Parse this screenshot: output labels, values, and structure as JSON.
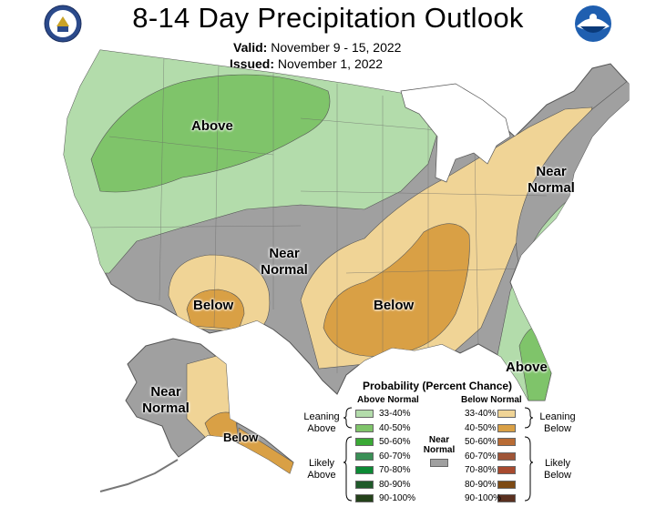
{
  "header": {
    "title": "8-14 Day Precipitation Outlook",
    "valid_label": "Valid:",
    "valid_value": "November 9 - 15, 2022",
    "issued_label": "Issued:",
    "issued_value": "November 1, 2022"
  },
  "map_labels": {
    "above_north": "Above",
    "near_normal_center_1": "Near",
    "near_normal_center_2": "Normal",
    "below_southwest": "Below",
    "below_south": "Below",
    "near_normal_northeast_1": "Near",
    "near_normal_northeast_2": "Normal",
    "above_florida": "Above",
    "near_normal_alaska_1": "Near",
    "near_normal_alaska_2": "Normal",
    "below_alaska": "Below"
  },
  "legend": {
    "title": "Probability (Percent Chance)",
    "above_header": "Above Normal",
    "below_header": "Below Normal",
    "leaning_above_1": "Leaning",
    "leaning_above_2": "Above",
    "likely_above_1": "Likely",
    "likely_above_2": "Above",
    "leaning_below_1": "Leaning",
    "leaning_below_2": "Below",
    "likely_below_1": "Likely",
    "likely_below_2": "Below",
    "near_normal_1": "Near",
    "near_normal_2": "Normal",
    "above_ranges": [
      "33-40%",
      "40-50%",
      "50-60%",
      "60-70%",
      "70-80%",
      "80-90%",
      "90-100%"
    ],
    "below_ranges": [
      "33-40%",
      "40-50%",
      "50-60%",
      "60-70%",
      "70-80%",
      "80-90%",
      "90-100%"
    ],
    "above_colors": [
      "#b3dcab",
      "#7fc46a",
      "#3aa935",
      "#3a8f56",
      "#0c8a35",
      "#1f5a2a",
      "#24421a"
    ],
    "below_colors": [
      "#f0d496",
      "#d9a045",
      "#b86b34",
      "#9f5537",
      "#a84a2f",
      "#7d4a14",
      "#5a3020"
    ],
    "near_normal_color": "#a0a0a0"
  },
  "colors": {
    "above_33_40": "#b3dcab",
    "above_40_50": "#7fc46a",
    "below_33_40": "#f0d496",
    "below_40_50": "#d9a045",
    "near_normal": "#a0a0a0"
  }
}
